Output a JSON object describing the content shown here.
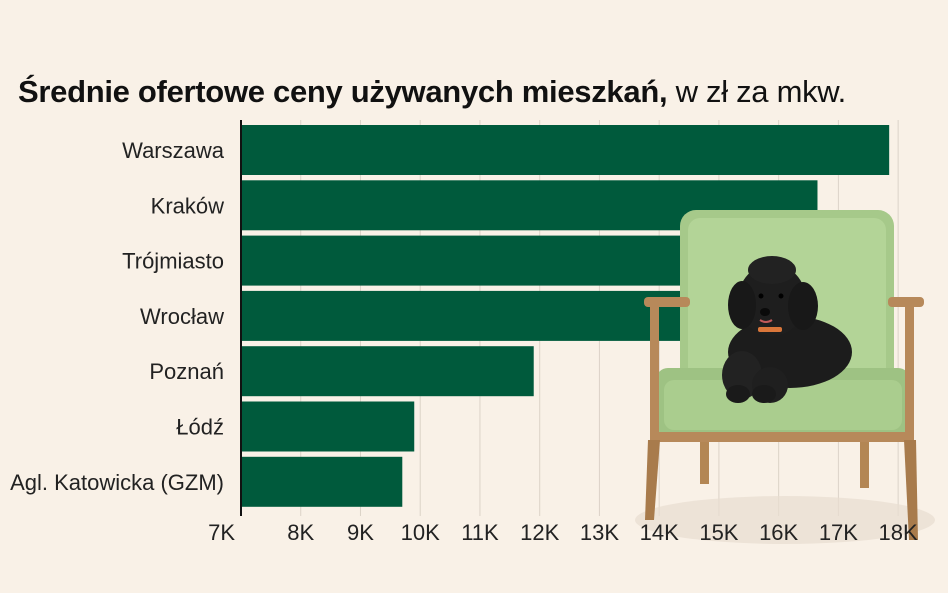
{
  "title_bold": "Średnie ofertowe ceny używanych mieszkań,",
  "title_rest": "w zł za mkw.",
  "chart_data": {
    "type": "bar",
    "orientation": "horizontal",
    "title": "Średnie ofertowe ceny używanych mieszkań, w zł za mkw.",
    "categories": [
      "Warszawa",
      "Kraków",
      "Trójmiasto",
      "Wrocław",
      "Poznań",
      "Łódź",
      "Agl. Katowicka (GZM)"
    ],
    "values": [
      17850,
      16650,
      15900,
      15000,
      11900,
      9900,
      9700
    ],
    "xlim": [
      7000,
      18500
    ],
    "xticks": [
      7000,
      8000,
      9000,
      10000,
      11000,
      12000,
      13000,
      14000,
      15000,
      16000,
      17000,
      18000
    ],
    "xtick_labels": [
      "7K",
      "8K",
      "9K",
      "10K",
      "11K",
      "12K",
      "13K",
      "14K",
      "15K",
      "16K",
      "17K",
      "18K"
    ],
    "grid": "vertical",
    "bar_color": "#005a3c"
  },
  "illustration": {
    "description_icon": "dog-on-armchair-photo"
  }
}
